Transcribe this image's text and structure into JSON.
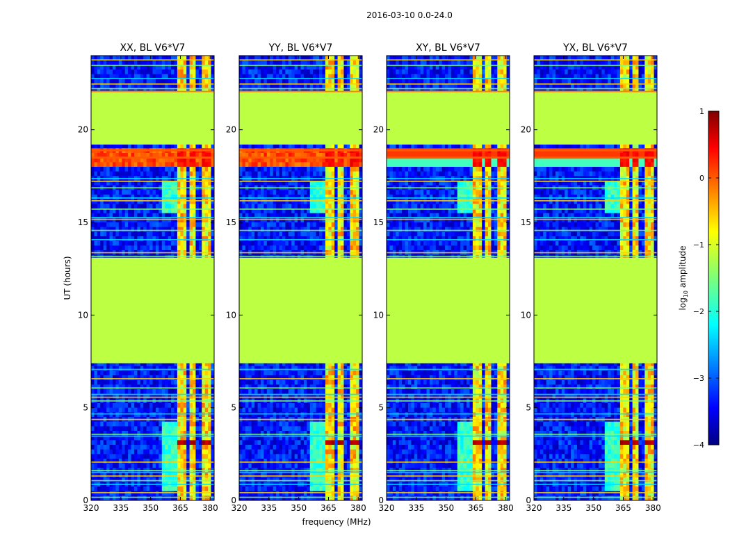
{
  "chart_data": [
    {
      "type": "heatmap",
      "suptitle": "2016-03-10 0.0-24.0",
      "panels": [
        {
          "title": "XX, BL V6*V7",
          "polarization": "XX"
        },
        {
          "title": "YY, BL V6*V7",
          "polarization": "YY"
        },
        {
          "title": "XY, BL V6*V7",
          "polarization": "XY"
        },
        {
          "title": "YX, BL V6*V7",
          "polarization": "YX"
        }
      ],
      "xlabel": "frequency (MHz)",
      "ylabel": "UT (hours)",
      "xlim": [
        320,
        382
      ],
      "ylim": [
        0,
        24
      ],
      "xticks": [
        "320",
        "335",
        "350",
        "365",
        "380"
      ],
      "xtick_values": [
        320,
        335,
        350,
        365,
        380
      ],
      "yticks": [
        "0",
        "5",
        "10",
        "15",
        "20"
      ],
      "ytick_values": [
        0,
        5,
        10,
        15,
        20
      ],
      "colorbar": {
        "label": "log",
        "label_sub": "10",
        "label_rest": " amplitude",
        "range": [
          -4,
          1
        ],
        "ticks": [
          "1",
          "0",
          "−1",
          "−2",
          "−3",
          "−4"
        ],
        "tick_values": [
          1,
          0,
          -1,
          -2,
          -3,
          -4
        ],
        "colormap": "jet"
      },
      "structure": {
        "flagged_blocks_hours": [
          [
            7.4,
            13.1
          ],
          [
            19.2,
            22.1
          ]
        ],
        "flagged_value": -1.2,
        "background_value": -3.3,
        "rfi_channels_mhz": [
          [
            363.5,
            368.8
          ],
          [
            369.8,
            372.8
          ],
          [
            373.7,
            374.6
          ],
          [
            375.8,
            378.6
          ],
          [
            379.2,
            380.5
          ]
        ],
        "strong_band_hours": [
          17.95,
          19.0
        ],
        "peak_hours": [
          2.9,
          3.35
        ]
      }
    }
  ]
}
